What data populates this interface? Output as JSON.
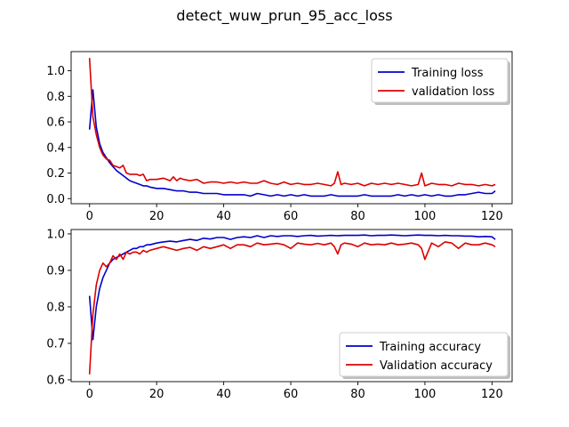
{
  "figure": {
    "title": "detect_wuw_prun_95_acc_loss"
  },
  "chart_data": [
    {
      "type": "line",
      "title": "",
      "xlabel": "",
      "ylabel": "",
      "xlim": [
        -5.5,
        126
      ],
      "ylim": [
        -0.04,
        1.15
      ],
      "xticks": [
        0,
        20,
        40,
        60,
        80,
        100,
        120
      ],
      "yticks": [
        0.0,
        0.2,
        0.4,
        0.6,
        0.8,
        1.0
      ],
      "ytick_labels": [
        "0.0",
        "0.2",
        "0.4",
        "0.6",
        "0.8",
        "1.0"
      ],
      "legend_position": "top-right",
      "series": [
        {
          "name": "Training loss",
          "color": "#0000cc",
          "x": [
            0,
            1,
            2,
            3,
            4,
            5,
            6,
            7,
            8,
            9,
            10,
            11,
            12,
            13,
            14,
            15,
            16,
            17,
            18,
            20,
            22,
            24,
            26,
            28,
            30,
            32,
            34,
            36,
            38,
            40,
            42,
            44,
            46,
            48,
            50,
            52,
            54,
            56,
            58,
            60,
            62,
            64,
            66,
            68,
            70,
            72,
            74,
            76,
            78,
            80,
            82,
            84,
            86,
            88,
            90,
            92,
            94,
            96,
            98,
            100,
            102,
            104,
            106,
            108,
            110,
            112,
            114,
            116,
            118,
            120,
            121
          ],
          "y": [
            0.54,
            0.85,
            0.56,
            0.43,
            0.36,
            0.32,
            0.28,
            0.25,
            0.22,
            0.2,
            0.18,
            0.16,
            0.14,
            0.13,
            0.12,
            0.11,
            0.1,
            0.1,
            0.09,
            0.08,
            0.08,
            0.07,
            0.06,
            0.06,
            0.05,
            0.05,
            0.04,
            0.04,
            0.04,
            0.03,
            0.03,
            0.03,
            0.03,
            0.02,
            0.04,
            0.03,
            0.02,
            0.03,
            0.02,
            0.03,
            0.02,
            0.03,
            0.02,
            0.02,
            0.02,
            0.03,
            0.02,
            0.02,
            0.02,
            0.02,
            0.03,
            0.02,
            0.02,
            0.02,
            0.02,
            0.03,
            0.02,
            0.03,
            0.02,
            0.03,
            0.02,
            0.03,
            0.02,
            0.02,
            0.03,
            0.03,
            0.04,
            0.05,
            0.04,
            0.04,
            0.06
          ]
        },
        {
          "name": "validation loss",
          "color": "#dd0000",
          "x": [
            0,
            1,
            2,
            3,
            4,
            5,
            6,
            7,
            8,
            9,
            10,
            11,
            12,
            13,
            14,
            15,
            16,
            17,
            18,
            20,
            22,
            24,
            25,
            26,
            27,
            28,
            30,
            32,
            34,
            36,
            38,
            40,
            42,
            44,
            46,
            48,
            50,
            52,
            54,
            56,
            58,
            60,
            62,
            64,
            66,
            68,
            70,
            72,
            73,
            74,
            75,
            76,
            78,
            80,
            82,
            84,
            86,
            88,
            90,
            92,
            94,
            96,
            98,
            99,
            100,
            102,
            104,
            106,
            108,
            110,
            112,
            114,
            116,
            118,
            120,
            121
          ],
          "y": [
            1.1,
            0.64,
            0.5,
            0.4,
            0.34,
            0.31,
            0.3,
            0.26,
            0.25,
            0.24,
            0.26,
            0.2,
            0.19,
            0.19,
            0.19,
            0.18,
            0.19,
            0.14,
            0.15,
            0.15,
            0.16,
            0.14,
            0.17,
            0.14,
            0.16,
            0.15,
            0.14,
            0.15,
            0.12,
            0.13,
            0.13,
            0.12,
            0.13,
            0.12,
            0.13,
            0.12,
            0.12,
            0.14,
            0.12,
            0.11,
            0.13,
            0.11,
            0.12,
            0.11,
            0.11,
            0.12,
            0.11,
            0.1,
            0.12,
            0.21,
            0.11,
            0.12,
            0.11,
            0.12,
            0.1,
            0.12,
            0.11,
            0.12,
            0.11,
            0.12,
            0.11,
            0.1,
            0.11,
            0.2,
            0.1,
            0.12,
            0.11,
            0.11,
            0.1,
            0.12,
            0.11,
            0.11,
            0.1,
            0.11,
            0.1,
            0.11
          ]
        }
      ]
    },
    {
      "type": "line",
      "title": "",
      "xlabel": "",
      "ylabel": "",
      "xlim": [
        -5.5,
        126
      ],
      "ylim": [
        0.595,
        1.012
      ],
      "xticks": [
        0,
        20,
        40,
        60,
        80,
        100,
        120
      ],
      "yticks": [
        0.6,
        0.7,
        0.8,
        0.9,
        1.0
      ],
      "ytick_labels": [
        "0.6",
        "0.7",
        "0.8",
        "0.9",
        "1.0"
      ],
      "legend_position": "bottom-right",
      "series": [
        {
          "name": "Training accuracy",
          "color": "#0000cc",
          "x": [
            0,
            1,
            2,
            3,
            4,
            5,
            6,
            7,
            8,
            9,
            10,
            11,
            12,
            13,
            14,
            15,
            16,
            17,
            18,
            20,
            22,
            24,
            26,
            28,
            30,
            32,
            34,
            36,
            38,
            40,
            42,
            44,
            46,
            48,
            50,
            52,
            54,
            56,
            58,
            60,
            62,
            64,
            66,
            68,
            70,
            72,
            74,
            76,
            78,
            80,
            82,
            84,
            86,
            88,
            90,
            92,
            94,
            96,
            98,
            100,
            102,
            104,
            106,
            108,
            110,
            112,
            114,
            116,
            118,
            120,
            121
          ],
          "y": [
            0.83,
            0.71,
            0.8,
            0.85,
            0.88,
            0.9,
            0.92,
            0.93,
            0.935,
            0.94,
            0.945,
            0.95,
            0.955,
            0.96,
            0.96,
            0.965,
            0.965,
            0.97,
            0.97,
            0.975,
            0.978,
            0.98,
            0.978,
            0.982,
            0.985,
            0.982,
            0.988,
            0.986,
            0.99,
            0.99,
            0.985,
            0.99,
            0.992,
            0.99,
            0.995,
            0.99,
            0.995,
            0.993,
            0.995,
            0.995,
            0.993,
            0.995,
            0.996,
            0.994,
            0.995,
            0.996,
            0.995,
            0.996,
            0.996,
            0.996,
            0.997,
            0.995,
            0.996,
            0.996,
            0.997,
            0.996,
            0.995,
            0.996,
            0.997,
            0.996,
            0.996,
            0.995,
            0.996,
            0.995,
            0.995,
            0.994,
            0.994,
            0.992,
            0.993,
            0.992,
            0.985
          ]
        },
        {
          "name": "Validation accuracy",
          "color": "#dd0000",
          "x": [
            0,
            1,
            2,
            3,
            4,
            5,
            6,
            7,
            8,
            9,
            10,
            11,
            12,
            13,
            14,
            15,
            16,
            17,
            18,
            20,
            22,
            24,
            26,
            28,
            30,
            32,
            34,
            36,
            38,
            40,
            42,
            44,
            46,
            48,
            50,
            52,
            54,
            56,
            58,
            60,
            62,
            64,
            66,
            68,
            70,
            72,
            73,
            74,
            75,
            76,
            78,
            80,
            82,
            84,
            86,
            88,
            90,
            92,
            94,
            96,
            98,
            99,
            100,
            102,
            104,
            106,
            108,
            110,
            112,
            114,
            116,
            118,
            120,
            121
          ],
          "y": [
            0.615,
            0.78,
            0.86,
            0.9,
            0.92,
            0.91,
            0.92,
            0.94,
            0.93,
            0.945,
            0.93,
            0.95,
            0.945,
            0.95,
            0.95,
            0.945,
            0.955,
            0.95,
            0.955,
            0.96,
            0.965,
            0.96,
            0.955,
            0.96,
            0.963,
            0.955,
            0.965,
            0.96,
            0.965,
            0.97,
            0.96,
            0.97,
            0.97,
            0.965,
            0.975,
            0.97,
            0.972,
            0.974,
            0.97,
            0.96,
            0.975,
            0.972,
            0.97,
            0.974,
            0.97,
            0.975,
            0.965,
            0.945,
            0.97,
            0.975,
            0.972,
            0.965,
            0.975,
            0.97,
            0.972,
            0.97,
            0.975,
            0.97,
            0.972,
            0.975,
            0.97,
            0.96,
            0.93,
            0.975,
            0.965,
            0.978,
            0.975,
            0.96,
            0.975,
            0.97,
            0.97,
            0.975,
            0.97,
            0.965
          ]
        }
      ]
    }
  ]
}
